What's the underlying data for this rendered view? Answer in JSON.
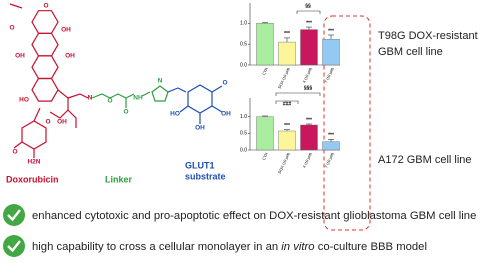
{
  "structure": {
    "atoms": [
      "O",
      "O",
      "OH",
      "OH",
      "OH",
      "HO",
      "OH",
      "O",
      "H2N",
      "O",
      "N",
      "O",
      "O",
      "NH",
      "N",
      "O",
      "HO",
      "OH",
      "OH"
    ]
  },
  "labels": {
    "doxorubicin": "Doxorubicin",
    "linker": "Linker",
    "glut1": [
      "GLUT1",
      "substrate"
    ]
  },
  "cell_lines": [
    [
      "T98G DOX-resistant",
      "GBM cell line"
    ],
    "A172 GBM cell line"
  ],
  "claims": [
    "enhanced cytotoxic and pro-apoptotic effect on DOX-resistant glioblastoma GBM cell line",
    [
      "high capability to cross a cellular monolayer in an ",
      "in vitro",
      " co-culture BBB model"
    ]
  ],
  "chart_data": [
    {
      "type": "bar",
      "categories": [
        "CTR",
        "DOX (10 µM)",
        "4 (10 µM)",
        "7 (10 µM)"
      ],
      "values": [
        1.0,
        0.55,
        0.85,
        0.62
      ],
      "errors": [
        0.02,
        0.1,
        0.06,
        0.1
      ],
      "colors": [
        "#a8eda0",
        "#fdf59a",
        "#c8175d",
        "#93c9f2"
      ],
      "value_annotations": [
        null,
        "***",
        "***",
        "***"
      ],
      "annotations": [
        "§§"
      ],
      "ylim": [
        0,
        1.2
      ],
      "yticks": [
        {
          "value": 0,
          "label": "0.0"
        },
        {
          "value": 0.5,
          "label": "0.5"
        },
        {
          "value": 1,
          "label": "1.0"
        }
      ]
    },
    {
      "type": "bar",
      "categories": [
        "CTR",
        "DOX (10 µM)",
        "4 (10 µM)",
        "7 (10 µM)"
      ],
      "values": [
        1.0,
        0.57,
        0.75,
        0.25
      ],
      "errors": [
        0.02,
        0.04,
        0.03,
        0.07
      ],
      "colors": [
        "#a8eda0",
        "#fdf59a",
        "#c8175d",
        "#93c9f2"
      ],
      "value_annotations": [
        null,
        "***",
        "***",
        "***"
      ],
      "annotations": [
        "§§§",
        "###"
      ],
      "ylim": [
        0,
        1.2
      ],
      "yticks": [
        {
          "value": 0,
          "label": "0.0"
        },
        {
          "value": 0.5,
          "label": "0.5"
        },
        {
          "value": 1,
          "label": "1.0"
        }
      ]
    }
  ]
}
